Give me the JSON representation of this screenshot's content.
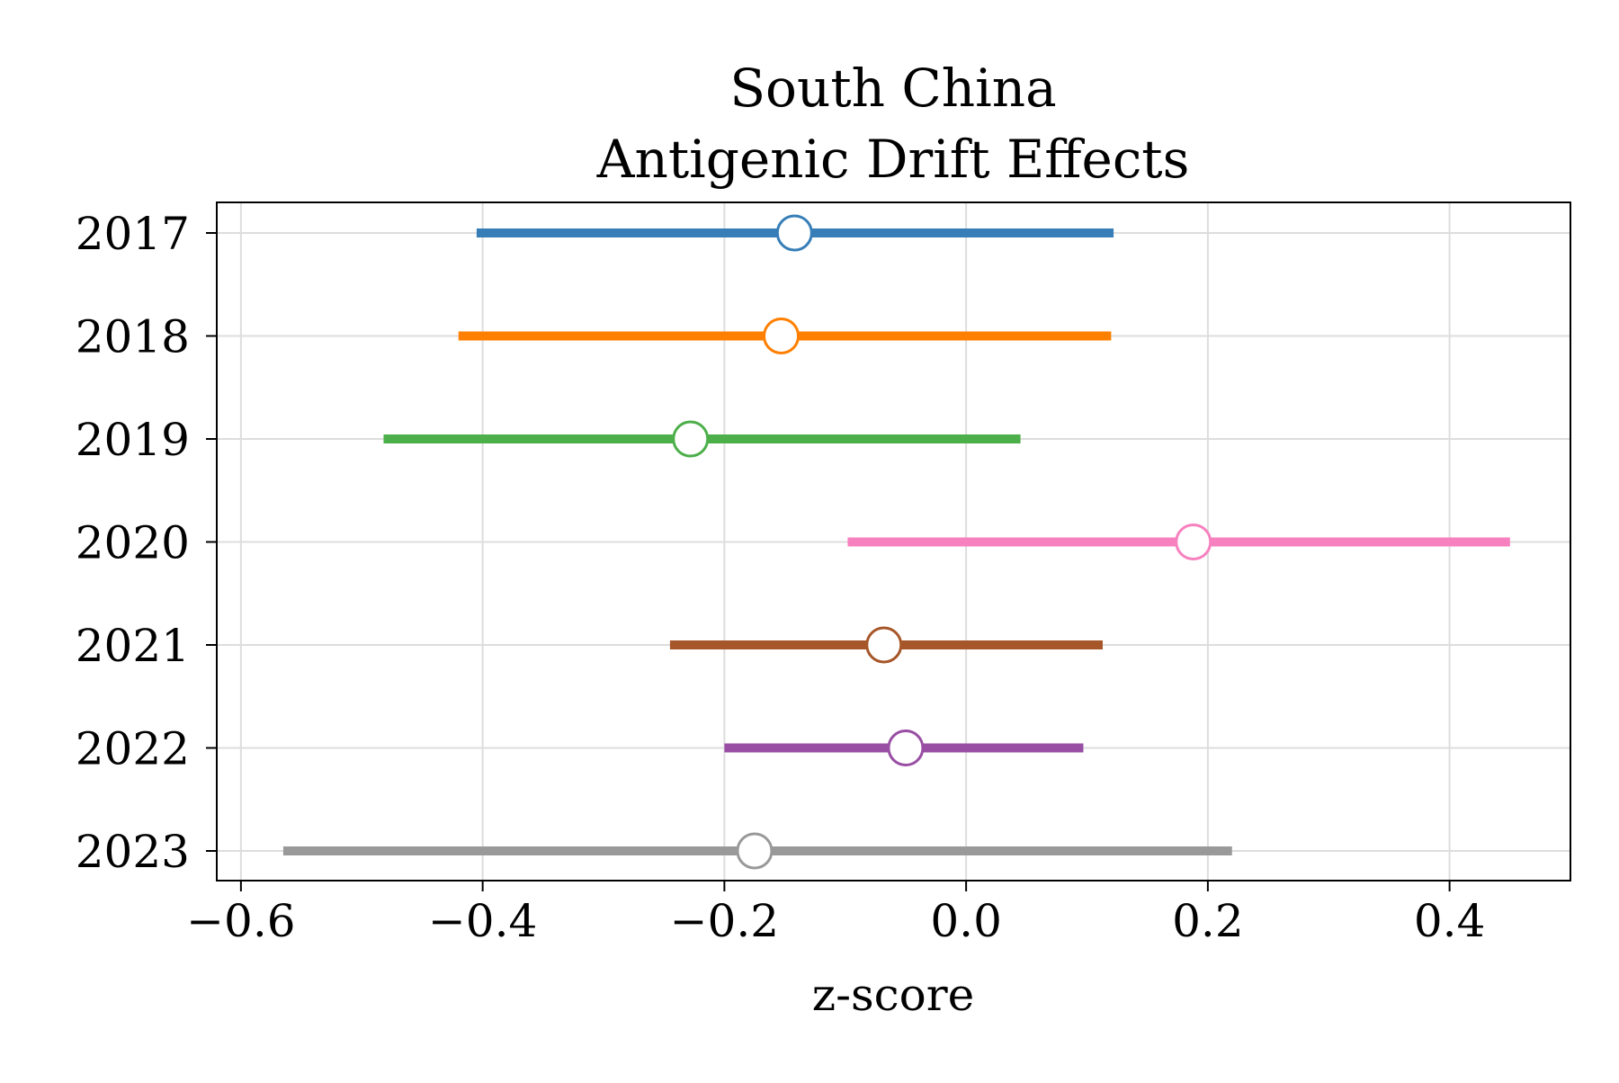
{
  "chart_data": {
    "type": "forest",
    "title_line1": "South China",
    "title_line2": "Antigenic Drift Effects",
    "xlabel": "z-score",
    "ylabel": "",
    "xlim": [
      -0.62,
      0.5
    ],
    "xticks": [
      -0.6,
      -0.4,
      -0.2,
      0.0,
      0.2,
      0.4
    ],
    "xtick_labels": [
      "−0.6",
      "−0.4",
      "−0.2",
      "0.0",
      "0.2",
      "0.4"
    ],
    "grid": true,
    "categories": [
      "2017",
      "2018",
      "2019",
      "2020",
      "2021",
      "2022",
      "2023"
    ],
    "points": [
      {
        "label": "2017",
        "estimate": -0.142,
        "lower": -0.405,
        "upper": 0.122,
        "color": "#377eb8"
      },
      {
        "label": "2018",
        "estimate": -0.153,
        "lower": -0.42,
        "upper": 0.12,
        "color": "#ff7f00"
      },
      {
        "label": "2019",
        "estimate": -0.228,
        "lower": -0.482,
        "upper": 0.045,
        "color": "#4daf4a"
      },
      {
        "label": "2020",
        "estimate": 0.188,
        "lower": -0.098,
        "upper": 0.45,
        "color": "#f781bf"
      },
      {
        "label": "2021",
        "estimate": -0.068,
        "lower": -0.245,
        "upper": 0.113,
        "color": "#a65628"
      },
      {
        "label": "2022",
        "estimate": -0.05,
        "lower": -0.2,
        "upper": 0.097,
        "color": "#984ea3"
      },
      {
        "label": "2023",
        "estimate": -0.175,
        "lower": -0.565,
        "upper": 0.22,
        "color": "#999999"
      }
    ]
  }
}
